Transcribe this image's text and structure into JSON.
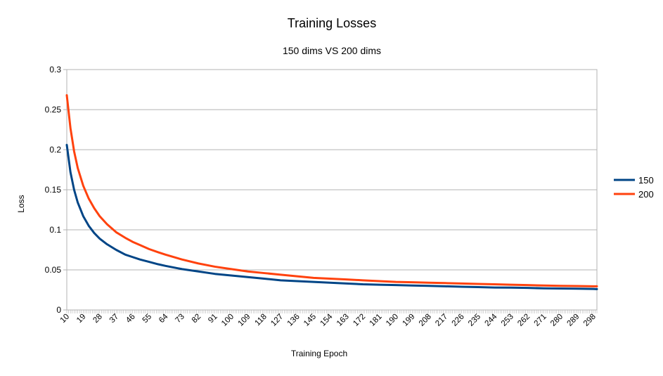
{
  "chart_data": {
    "type": "line",
    "title": "Training Losses",
    "subtitle": "150 dims VS 200 dims",
    "xlabel": "Training Epoch",
    "ylabel": "Loss",
    "ylim": [
      0,
      0.3
    ],
    "y_ticks": [
      "0",
      "0.05",
      "0.1",
      "0.15",
      "0.2",
      "0.25",
      "0.3"
    ],
    "xlim": [
      10,
      300
    ],
    "x_ticks": [
      "10",
      "19",
      "28",
      "37",
      "46",
      "55",
      "64",
      "73",
      "82",
      "91",
      "100",
      "109",
      "118",
      "127",
      "136",
      "145",
      "154",
      "163",
      "172",
      "181",
      "190",
      "199",
      "208",
      "217",
      "226",
      "235",
      "244",
      "253",
      "262",
      "271",
      "280",
      "289",
      "298"
    ],
    "x": [
      10,
      12,
      14,
      16,
      19,
      22,
      25,
      28,
      32,
      37,
      42,
      46,
      50,
      55,
      60,
      64,
      73,
      82,
      91,
      100,
      109,
      118,
      127,
      136,
      145,
      154,
      163,
      172,
      181,
      190,
      199,
      208,
      217,
      226,
      235,
      244,
      253,
      262,
      271,
      280,
      289,
      298,
      300
    ],
    "series": [
      {
        "name": "150",
        "color": "#004586",
        "values": [
          0.206,
          0.172,
          0.15,
          0.134,
          0.117,
          0.105,
          0.096,
          0.089,
          0.082,
          0.075,
          0.069,
          0.066,
          0.063,
          0.06,
          0.057,
          0.055,
          0.051,
          0.048,
          0.045,
          0.043,
          0.041,
          0.039,
          0.037,
          0.036,
          0.035,
          0.034,
          0.033,
          0.032,
          0.0315,
          0.031,
          0.0305,
          0.03,
          0.0295,
          0.029,
          0.0285,
          0.028,
          0.0278,
          0.0275,
          0.027,
          0.0268,
          0.0265,
          0.0262,
          0.026
        ]
      },
      {
        "name": "200",
        "color": "#ff420e",
        "values": [
          0.268,
          0.227,
          0.198,
          0.177,
          0.155,
          0.139,
          0.127,
          0.117,
          0.107,
          0.097,
          0.09,
          0.085,
          0.081,
          0.076,
          0.072,
          0.069,
          0.063,
          0.058,
          0.054,
          0.051,
          0.048,
          0.046,
          0.044,
          0.042,
          0.04,
          0.039,
          0.038,
          0.037,
          0.036,
          0.035,
          0.0345,
          0.034,
          0.0335,
          0.033,
          0.0325,
          0.032,
          0.0315,
          0.031,
          0.0305,
          0.03,
          0.0298,
          0.0295,
          0.0295
        ]
      }
    ],
    "grid": true,
    "legend_position": "right"
  }
}
